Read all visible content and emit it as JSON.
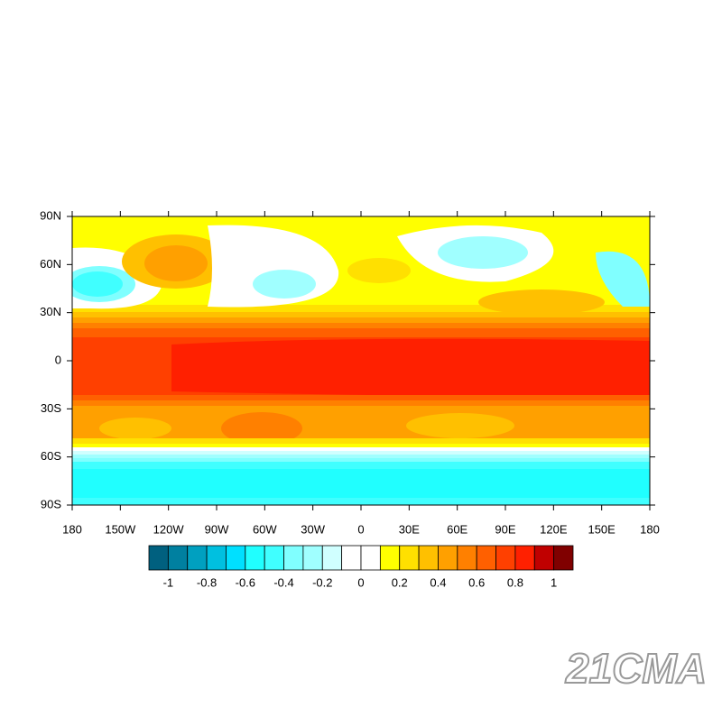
{
  "map": {
    "xticks": [
      "180",
      "150W",
      "120W",
      "90W",
      "60W",
      "30W",
      "0",
      "30E",
      "60E",
      "90E",
      "120E",
      "150E",
      "180"
    ],
    "yticks": [
      "90N",
      "60N",
      "30N",
      "0",
      "30S",
      "60S",
      "90S"
    ]
  },
  "colorbar": {
    "colors": [
      "#00607f",
      "#0080a0",
      "#00a0c0",
      "#00c0e0",
      "#00e0ff",
      "#20ffff",
      "#40ffff",
      "#80ffff",
      "#a0ffff",
      "#d0ffff",
      "#ffffff",
      "#ffffff",
      "#ffff00",
      "#ffe000",
      "#ffc000",
      "#ffa000",
      "#ff8000",
      "#ff6000",
      "#ff4000",
      "#ff2000",
      "#c00000",
      "#800000"
    ],
    "levels": [
      -1,
      -0.8,
      -0.6,
      -0.4,
      -0.2,
      0,
      0.2,
      0.4,
      0.6,
      0.8,
      1
    ]
  },
  "watermark": "21CMA"
}
